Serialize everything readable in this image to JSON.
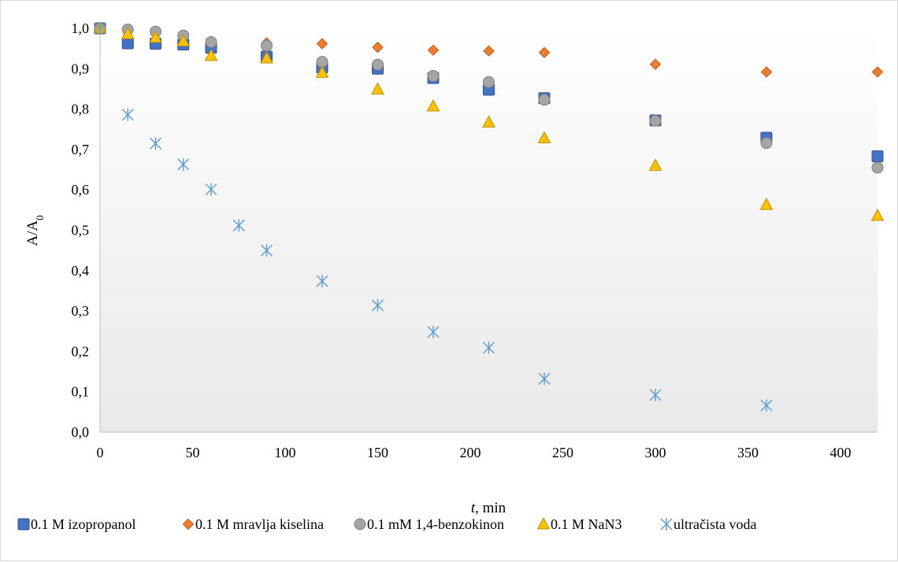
{
  "chart_data": {
    "type": "scatter",
    "title": "",
    "xlabel": "t, min",
    "xlabel_italic_part": "t",
    "xlabel_rest": ", min",
    "ylabel": "A/A0",
    "ylabel_main": "A/A",
    "ylabel_sub": "0",
    "xlim": [
      0,
      420
    ],
    "ylim": [
      0,
      1.0
    ],
    "x_ticks": [
      0,
      50,
      100,
      150,
      200,
      250,
      300,
      350,
      400
    ],
    "x_tick_labels": [
      "0",
      "50",
      "100",
      "150",
      "200",
      "250",
      "300",
      "350",
      "400"
    ],
    "y_ticks": [
      0,
      0.1,
      0.2,
      0.3,
      0.4,
      0.5,
      0.6,
      0.7,
      0.8,
      0.9,
      1.0
    ],
    "y_tick_labels": [
      "0,0",
      "0,1",
      "0,2",
      "0,3",
      "0,4",
      "0,5",
      "0,6",
      "0,7",
      "0,8",
      "0,9",
      "1,0"
    ],
    "grid": false,
    "legend_position": "bottom",
    "series": [
      {
        "name": "0.1 M izopropanol",
        "marker": "square",
        "fill": "#4472c4",
        "stroke": "#2f528f",
        "x": [
          0,
          15,
          30,
          45,
          60,
          90,
          120,
          150,
          180,
          210,
          240,
          300,
          360,
          420
        ],
        "y": [
          1.0,
          0.963,
          0.962,
          0.96,
          0.952,
          0.93,
          0.903,
          0.9,
          0.877,
          0.848,
          0.827,
          0.772,
          0.729,
          0.683
        ]
      },
      {
        "name": "0.1 M mravlja kiselina",
        "marker": "diamond",
        "fill": "#ed7d31",
        "stroke": "#c55a11",
        "x": [
          0,
          15,
          30,
          45,
          60,
          90,
          120,
          150,
          180,
          210,
          240,
          300,
          360,
          420
        ],
        "y": [
          1.0,
          0.995,
          0.991,
          0.983,
          0.968,
          0.964,
          0.962,
          0.953,
          0.946,
          0.944,
          0.94,
          0.911,
          0.892,
          0.892
        ]
      },
      {
        "name": "0.1 mM 1,4-benzokinon",
        "marker": "circle",
        "fill": "#a5a5a5",
        "stroke": "#7f7f7f",
        "x": [
          0,
          15,
          30,
          45,
          60,
          90,
          120,
          150,
          180,
          210,
          240,
          300,
          360,
          420
        ],
        "y": [
          1.0,
          0.997,
          0.992,
          0.982,
          0.966,
          0.957,
          0.917,
          0.91,
          0.882,
          0.867,
          0.823,
          0.771,
          0.716,
          0.655
        ]
      },
      {
        "name": "0.1 M NaN3",
        "marker": "triangle",
        "fill": "#ffc000",
        "stroke": "#bf9000",
        "x": [
          0,
          15,
          30,
          45,
          60,
          90,
          120,
          150,
          180,
          210,
          240,
          300,
          360,
          420
        ],
        "y": [
          1.0,
          0.986,
          0.977,
          0.968,
          0.932,
          0.926,
          0.89,
          0.849,
          0.807,
          0.767,
          0.728,
          0.66,
          0.563,
          0.536
        ]
      },
      {
        "name": "ultračista voda",
        "marker": "asterisk",
        "fill": "none",
        "stroke": "#5b9bd5",
        "x": [
          0,
          15,
          30,
          45,
          60,
          75,
          90,
          120,
          150,
          180,
          210,
          240,
          300,
          360
        ],
        "y": [
          1.0,
          0.786,
          0.715,
          0.663,
          0.601,
          0.512,
          0.45,
          0.374,
          0.314,
          0.248,
          0.209,
          0.132,
          0.092,
          0.066
        ]
      }
    ]
  }
}
